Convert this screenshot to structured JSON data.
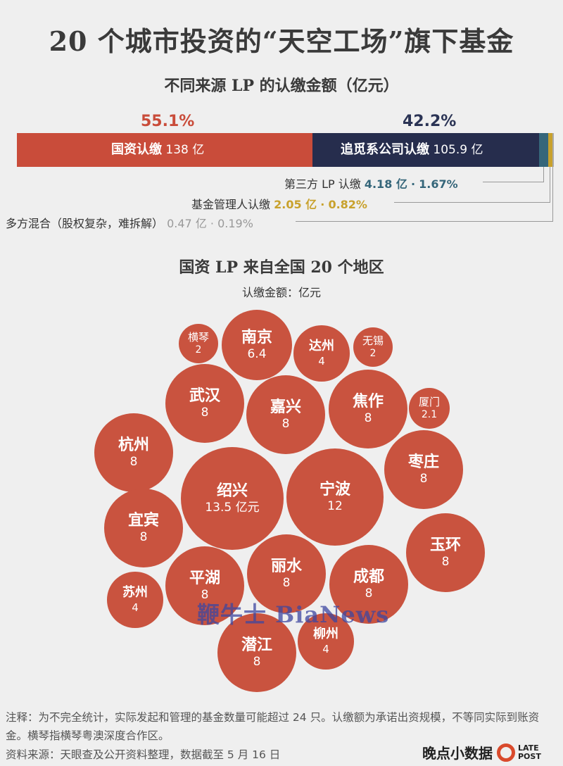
{
  "title": "20 个城市投资的“天空工场”旗下基金",
  "chart_data": [
    {
      "type": "bar",
      "title": "不同来源 LP 的认缴金额（亿元）",
      "orientation": "horizontal-stacked",
      "series": [
        {
          "name": "国资认缴",
          "value": 138,
          "value_label": "138 亿",
          "share_label": "55.1%",
          "color": "#c94c3a"
        },
        {
          "name": "追觅系公司认缴",
          "value": 105.9,
          "value_label": "105.9 亿",
          "share_label": "42.2%",
          "color": "#262d4d"
        },
        {
          "name": "第三方 LP 认缴",
          "value": 4.18,
          "value_label": "4.18 亿",
          "share_label": "1.67%",
          "color": "#35667a"
        },
        {
          "name": "基金管理人认缴",
          "value": 2.05,
          "value_label": "2.05 亿",
          "share_label": "0.82%",
          "color": "#c8a12c"
        },
        {
          "name": "多方混合（股权复杂，难拆解）",
          "value": 0.47,
          "value_label": "0.47 亿",
          "share_label": "0.19%",
          "color": "#aaaaaa"
        }
      ]
    },
    {
      "type": "bubble",
      "title": "国资 LP 来自全国 20 个地区",
      "subtitle": "认缴金额：亿元",
      "color": "#c9533f",
      "points": [
        {
          "name": "横琴",
          "value": 2,
          "label": "2"
        },
        {
          "name": "南京",
          "value": 6.4,
          "label": "6.4"
        },
        {
          "name": "达州",
          "value": 4,
          "label": "4"
        },
        {
          "name": "无锡",
          "value": 2,
          "label": "2"
        },
        {
          "name": "武汉",
          "value": 8,
          "label": "8"
        },
        {
          "name": "嘉兴",
          "value": 8,
          "label": "8"
        },
        {
          "name": "焦作",
          "value": 8,
          "label": "8"
        },
        {
          "name": "厦门",
          "value": 2.1,
          "label": "2.1"
        },
        {
          "name": "杭州",
          "value": 8,
          "label": "8"
        },
        {
          "name": "绍兴",
          "value": 13.5,
          "label": "13.5 亿元"
        },
        {
          "name": "宁波",
          "value": 12,
          "label": "12"
        },
        {
          "name": "枣庄",
          "value": 8,
          "label": "8"
        },
        {
          "name": "宜宾",
          "value": 8,
          "label": "8"
        },
        {
          "name": "玉环",
          "value": 8,
          "label": "8"
        },
        {
          "name": "丽水",
          "value": 8,
          "label": "8"
        },
        {
          "name": "平湖",
          "value": 8,
          "label": "8"
        },
        {
          "name": "成都",
          "value": 8,
          "label": "8"
        },
        {
          "name": "苏州",
          "value": 4,
          "label": "4"
        },
        {
          "name": "柳州",
          "value": 4,
          "label": "4"
        },
        {
          "name": "潜江",
          "value": 8,
          "label": "8"
        }
      ]
    }
  ],
  "watermark": "鞭牛士 BiaNews",
  "footer": {
    "note": "注释：为不完全统计，实际发起和管理的基金数量可能超过 24 只。认缴额为承诺出资规模，不等同实际到账资金。横琴指横琴粤澳深度合作区。",
    "source": "资料来源：天眼查及公开资料整理，数据截至 5 月 16 日",
    "logo_text": "晚点小数据",
    "logo_mark_line1": "LATE",
    "logo_mark_line2": "POST"
  }
}
